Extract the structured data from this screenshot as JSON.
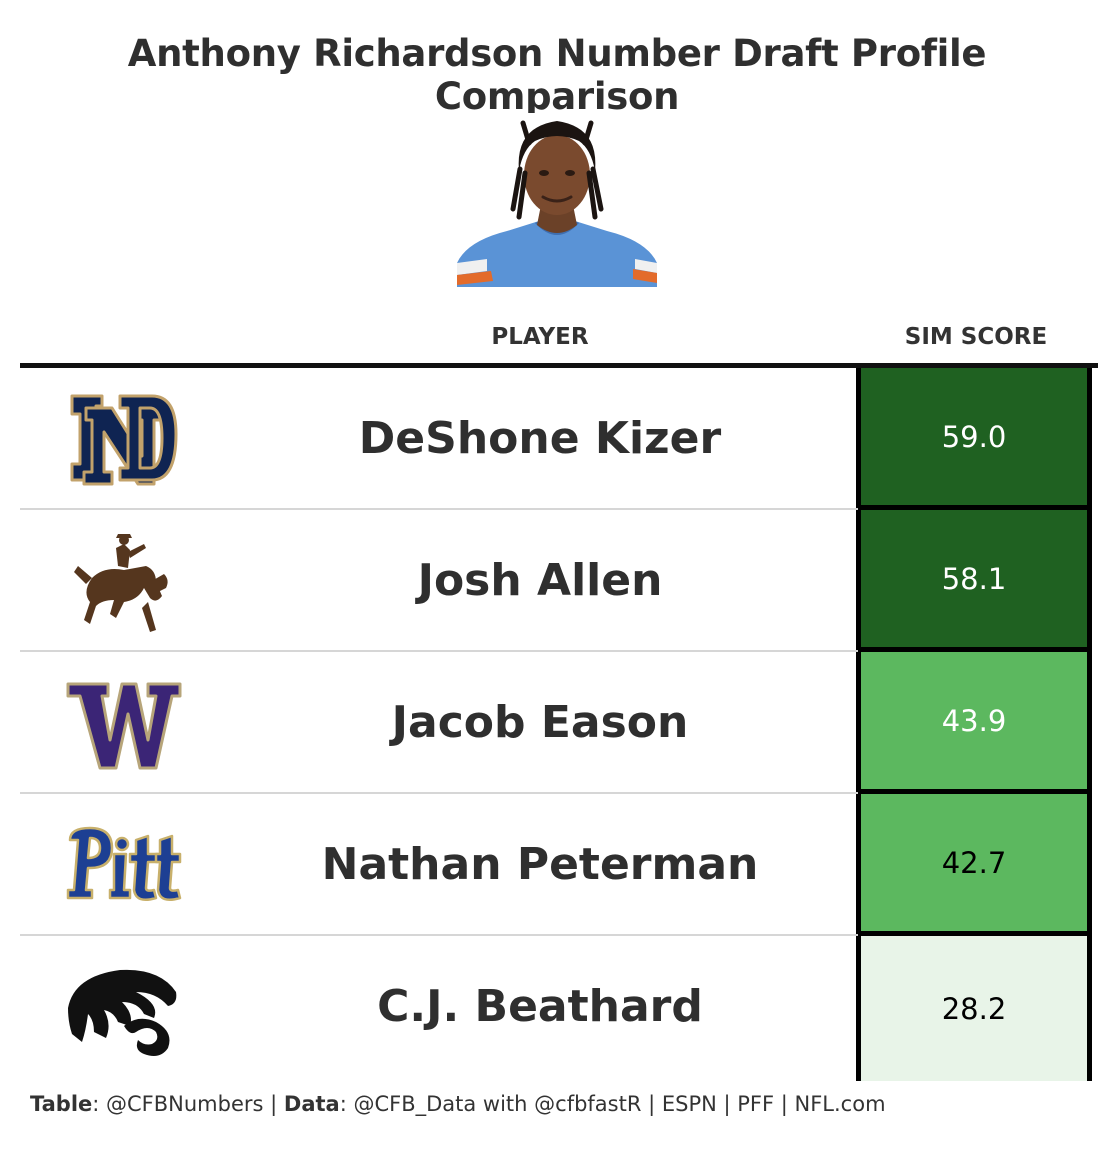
{
  "title": "Anthony Richardson Number Draft Profile Comparison",
  "headers": {
    "player": "PLAYER",
    "score": "SIM SCORE"
  },
  "chart_data": {
    "type": "table",
    "columns": [
      "PLAYER",
      "SIM SCORE"
    ],
    "rows": [
      {
        "player": "DeShone Kizer",
        "score": "59.0",
        "value": 59.0,
        "logo": "notre-dame-logo",
        "fill": "#1f6121",
        "text_color": "#ffffff"
      },
      {
        "player": "Josh Allen",
        "score": "58.1",
        "value": 58.1,
        "logo": "wyoming-bucking-horse-logo",
        "fill": "#1f6121",
        "text_color": "#ffffff"
      },
      {
        "player": "Jacob Eason",
        "score": "43.9",
        "value": 43.9,
        "logo": "washington-w-logo",
        "fill": "#5cb85f",
        "text_color": "#ffffff"
      },
      {
        "player": "Nathan Peterman",
        "score": "42.7",
        "value": 42.7,
        "logo": "pitt-logo",
        "fill": "#5cb85f",
        "text_color": "#000000"
      },
      {
        "player": "C.J. Beathard",
        "score": "28.2",
        "value": 28.2,
        "logo": "iowa-tigerhawk-logo",
        "fill": "#e8f4e8",
        "text_color": "#000000"
      }
    ]
  },
  "footer": {
    "table_label": "Table",
    "table_value": ": @CFBNumbers | ",
    "data_label": "Data",
    "data_value": ": @CFB_Data with @cfbfastR | ESPN | PFF | NFL.com"
  }
}
